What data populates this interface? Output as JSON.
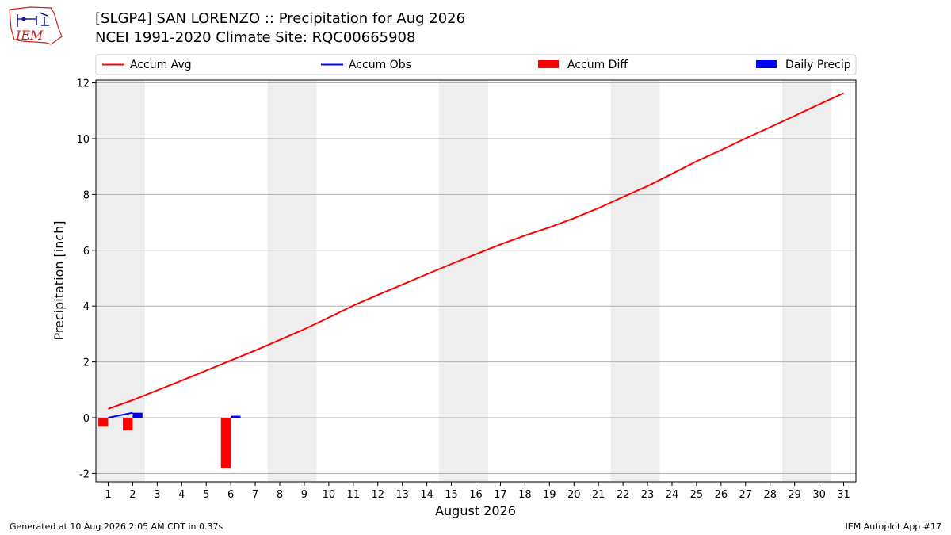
{
  "header": {
    "title": "[SLGP4] SAN LORENZO :: Precipitation for Aug 2026",
    "subtitle": "NCEI 1991-2020 Climate Site: RQC00665908",
    "logo_text": "IEM"
  },
  "footer": {
    "generated": "Generated at 10 Aug 2026 2:05 AM CDT in 0.37s",
    "app": "IEM Autoplot App #17"
  },
  "colors": {
    "accum_avg": "#ff0000",
    "accum_obs": "#0000ff",
    "accum_diff": "#ff0000",
    "daily_precip": "#0000ff",
    "weekend_shade": "#eeeeee",
    "grid": "#b0b0b0"
  },
  "chart_data": {
    "type": "line",
    "xlabel": "August 2026",
    "ylabel": "Precipitation [inch]",
    "xlim": [
      0.5,
      31.5
    ],
    "ylim": [
      -2.3,
      12.1
    ],
    "x_ticks": [
      1,
      2,
      3,
      4,
      5,
      6,
      7,
      8,
      9,
      10,
      11,
      12,
      13,
      14,
      15,
      16,
      17,
      18,
      19,
      20,
      21,
      22,
      23,
      24,
      25,
      26,
      27,
      28,
      29,
      30,
      31
    ],
    "y_ticks": [
      -2,
      0,
      2,
      4,
      6,
      8,
      10,
      12
    ],
    "grid": "horizontal",
    "legend": {
      "placement": "top",
      "entries": [
        {
          "label": "Accum Avg",
          "kind": "line",
          "color_key": "accum_avg"
        },
        {
          "label": "Accum Obs",
          "kind": "line",
          "color_key": "accum_obs"
        },
        {
          "label": "Accum Diff",
          "kind": "bar",
          "color_key": "accum_diff"
        },
        {
          "label": "Daily Precip",
          "kind": "bar",
          "color_key": "daily_precip"
        }
      ]
    },
    "weekend_spans": [
      [
        0.5,
        2.5
      ],
      [
        7.5,
        9.5
      ],
      [
        14.5,
        16.5
      ],
      [
        21.5,
        23.5
      ],
      [
        28.5,
        30.5
      ]
    ],
    "series": [
      {
        "name": "Accum Avg",
        "x": [
          1,
          2,
          3,
          4,
          5,
          6,
          7,
          8,
          9,
          10,
          11,
          12,
          13,
          14,
          15,
          16,
          17,
          18,
          19,
          20,
          21,
          22,
          23,
          24,
          25,
          26,
          27,
          28,
          29,
          30,
          31
        ],
        "values": [
          0.32,
          0.63,
          0.98,
          1.33,
          1.69,
          2.05,
          2.41,
          2.79,
          3.17,
          3.59,
          4.02,
          4.4,
          4.77,
          5.14,
          5.51,
          5.86,
          6.21,
          6.53,
          6.82,
          7.15,
          7.51,
          7.91,
          8.3,
          8.74,
          9.19,
          9.59,
          10.01,
          10.41,
          10.82,
          11.23,
          11.63
        ]
      },
      {
        "name": "Accum Obs",
        "x": [
          1,
          2
        ],
        "values": [
          0.0,
          0.18
        ]
      },
      {
        "name": "Accum Diff",
        "x": [
          1,
          2,
          6
        ],
        "values": [
          -0.32,
          -0.45,
          -1.81
        ]
      },
      {
        "name": "Daily Precip",
        "x": [
          2,
          6
        ],
        "values": [
          0.18,
          0.07
        ]
      }
    ]
  }
}
